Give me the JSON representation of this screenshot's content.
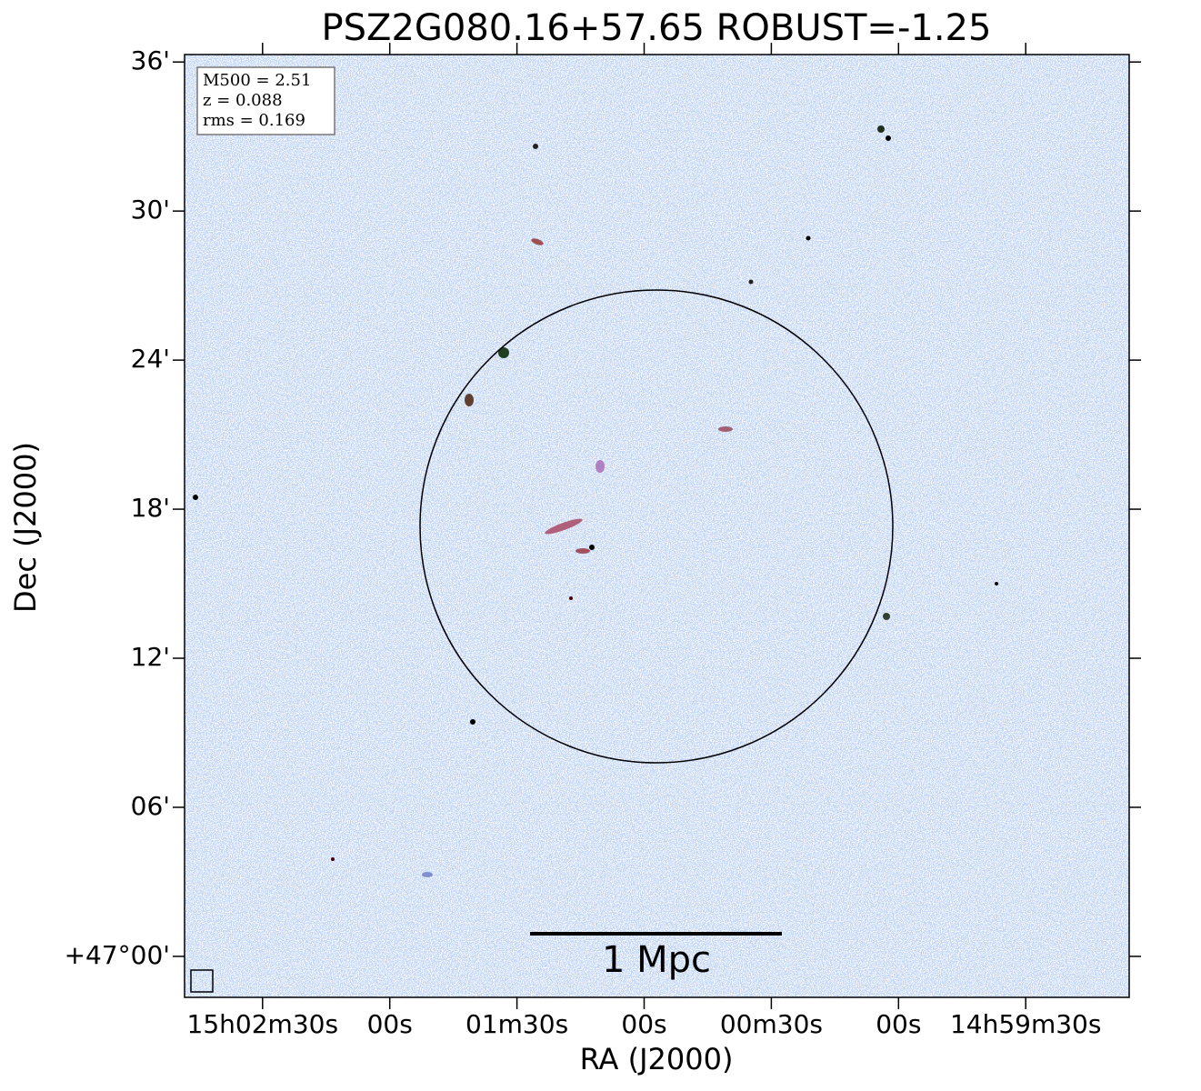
{
  "chart_data": {
    "type": "image",
    "title": "PSZ2G080.16+57.65 ROBUST=-1.25",
    "xlabel": "RA (J2000)",
    "ylabel": "Dec (J2000)",
    "xlim": [
      54168.4,
      53945.6
    ],
    "ylim": [
      -1.65,
      36.3
    ],
    "xticks": [
      {
        "value": 54150,
        "label": "15h02m30s"
      },
      {
        "value": 54120,
        "label": "00s"
      },
      {
        "value": 54090,
        "label": "01m30s"
      },
      {
        "value": 54060,
        "label": "00s"
      },
      {
        "value": 54030,
        "label": "00m30s"
      },
      {
        "value": 54000,
        "label": "00s"
      },
      {
        "value": 53970,
        "label": "14h59m30s"
      }
    ],
    "yticks": [
      {
        "value": 0,
        "label": "+47°00'"
      },
      {
        "value": 6,
        "label": "06'"
      },
      {
        "value": 12,
        "label": "12'"
      },
      {
        "value": 18,
        "label": "18'"
      },
      {
        "value": 24,
        "label": "24'"
      },
      {
        "value": 30,
        "label": "30'"
      },
      {
        "value": 36,
        "label": "36'"
      }
    ],
    "annotations": [
      "M500 = 2.51",
      "z = 0.088",
      "rms = 0.169"
    ],
    "scalebar_label": "1 Mpc"
  }
}
